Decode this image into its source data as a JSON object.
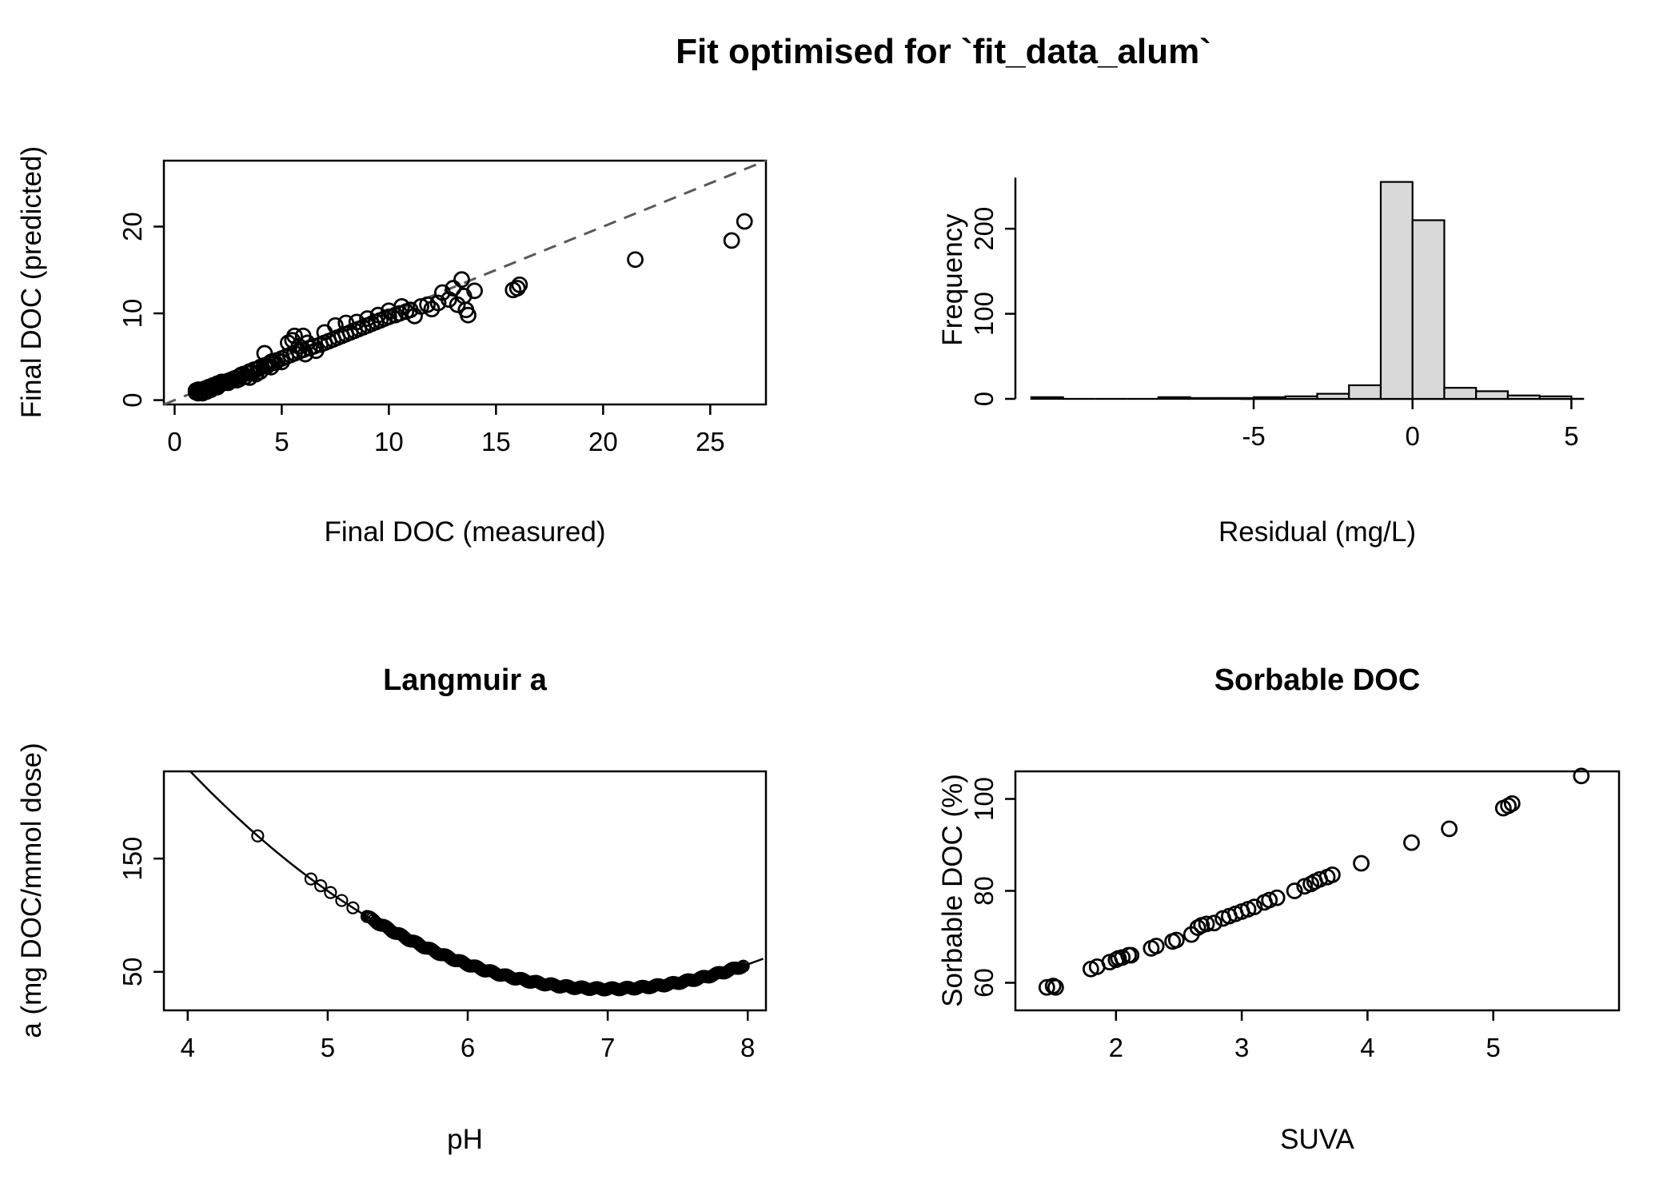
{
  "title": "Fit optimised for `fit_data_alum`",
  "chart_data": [
    {
      "type": "scatter",
      "title": "",
      "xlabel": "Final DOC (measured)",
      "ylabel": "Final DOC (predicted)",
      "xlim": [
        -0.5,
        27.6
      ],
      "ylim": [
        -0.5,
        27.6
      ],
      "xticks": [
        0,
        5,
        10,
        15,
        20,
        25
      ],
      "yticks": [
        0,
        10,
        20
      ],
      "grid": false,
      "reference_line": {
        "kind": "identity",
        "style": "dashed",
        "color": "#595959"
      },
      "points": [
        [
          1,
          0.9
        ],
        [
          1,
          1.1
        ],
        [
          1.1,
          0.8
        ],
        [
          1.1,
          1
        ],
        [
          1.1,
          1.2
        ],
        [
          1.2,
          0.9
        ],
        [
          1.2,
          1.1
        ],
        [
          1.3,
          1
        ],
        [
          1.3,
          1.2
        ],
        [
          1.3,
          0.8
        ],
        [
          1.4,
          1.1
        ],
        [
          1.4,
          1.3
        ],
        [
          1.5,
          1
        ],
        [
          1.5,
          1.2
        ],
        [
          1.5,
          1.4
        ],
        [
          1.6,
          1.3
        ],
        [
          1.6,
          1.5
        ],
        [
          1.7,
          1.4
        ],
        [
          1.7,
          1.2
        ],
        [
          1.8,
          1.5
        ],
        [
          1.8,
          1.7
        ],
        [
          1.9,
          1.6
        ],
        [
          2,
          1.7
        ],
        [
          2,
          1.5
        ],
        [
          2,
          1.9
        ],
        [
          2.1,
          1.8
        ],
        [
          2.2,
          1.9
        ],
        [
          2.2,
          2.1
        ],
        [
          2.3,
          2
        ],
        [
          2.4,
          2.1
        ],
        [
          2.5,
          2.2
        ],
        [
          2.5,
          2
        ],
        [
          2.6,
          2.3
        ],
        [
          2.7,
          2.4
        ],
        [
          2.8,
          2.5
        ],
        [
          2.9,
          2.3
        ],
        [
          3,
          2.7
        ],
        [
          3,
          2.4
        ],
        [
          3.1,
          2.9
        ],
        [
          3.2,
          3
        ],
        [
          3.3,
          2.7
        ],
        [
          3.4,
          3.1
        ],
        [
          3.5,
          3.3
        ],
        [
          3.5,
          2.6
        ],
        [
          3.6,
          3.2
        ],
        [
          3.7,
          3.5
        ],
        [
          3.8,
          3
        ],
        [
          3.9,
          3.6
        ],
        [
          4,
          3.8
        ],
        [
          4,
          3.3
        ],
        [
          4.2,
          5.4
        ],
        [
          4.2,
          4
        ],
        [
          4.3,
          3.9
        ],
        [
          4.4,
          4.2
        ],
        [
          4.5,
          4.4
        ],
        [
          4.5,
          3.8
        ],
        [
          4.6,
          4.5
        ],
        [
          4.7,
          4.3
        ],
        [
          4.8,
          4.6
        ],
        [
          5,
          4.8
        ],
        [
          5,
          4.4
        ],
        [
          5.2,
          5
        ],
        [
          5.3,
          6.6
        ],
        [
          5.4,
          5.2
        ],
        [
          5.5,
          6.9
        ],
        [
          5.6,
          5.4
        ],
        [
          5.6,
          7.4
        ],
        [
          5.8,
          5.6
        ],
        [
          5.8,
          6.2
        ],
        [
          6,
          5.8
        ],
        [
          6,
          7.4
        ],
        [
          6.1,
          5.3
        ],
        [
          6.2,
          6.6
        ],
        [
          6.3,
          6
        ],
        [
          6.5,
          6.2
        ],
        [
          6.6,
          5.7
        ],
        [
          6.8,
          6.4
        ],
        [
          7,
          6.6
        ],
        [
          7,
          7.8
        ],
        [
          7.2,
          6.8
        ],
        [
          7.4,
          7
        ],
        [
          7.5,
          8.6
        ],
        [
          7.6,
          7.2
        ],
        [
          7.8,
          7.4
        ],
        [
          8,
          7.6
        ],
        [
          8,
          8.9
        ],
        [
          8.2,
          7.8
        ],
        [
          8.4,
          8
        ],
        [
          8.5,
          9
        ],
        [
          8.6,
          8.2
        ],
        [
          8.8,
          8.4
        ],
        [
          9,
          8.6
        ],
        [
          9,
          9.4
        ],
        [
          9.2,
          8.8
        ],
        [
          9.4,
          9
        ],
        [
          9.5,
          9.8
        ],
        [
          9.6,
          9.2
        ],
        [
          9.8,
          9.4
        ],
        [
          10,
          9.6
        ],
        [
          10,
          10.3
        ],
        [
          10.3,
          9.8
        ],
        [
          10.5,
          10
        ],
        [
          10.6,
          10.8
        ],
        [
          10.8,
          10.2
        ],
        [
          11,
          10.4
        ],
        [
          11.2,
          9.7
        ],
        [
          11.5,
          10.8
        ],
        [
          11.8,
          11
        ],
        [
          12,
          10.5
        ],
        [
          12.3,
          11.2
        ],
        [
          12.5,
          12.4
        ],
        [
          12.8,
          11.6
        ],
        [
          13,
          12.9
        ],
        [
          13.2,
          11
        ],
        [
          13.4,
          13.9
        ],
        [
          13.5,
          12
        ],
        [
          13.6,
          10.4
        ],
        [
          13.7,
          9.8
        ],
        [
          14,
          12.6
        ],
        [
          15.8,
          12.7
        ],
        [
          16,
          12.9
        ],
        [
          16.1,
          13.3
        ],
        [
          21.5,
          16.2
        ],
        [
          26,
          18.4
        ],
        [
          26.6,
          20.6
        ]
      ]
    },
    {
      "type": "histogram",
      "title": "",
      "xlabel": "Residual (mg/L)",
      "ylabel": "Frequency",
      "xlim": [
        -12.5,
        6.5
      ],
      "ylim": [
        0,
        280
      ],
      "xticks": [
        -5,
        0,
        5
      ],
      "yticks": [
        0,
        100,
        200
      ],
      "bin_start": -12,
      "bin_width": 1,
      "counts": [
        2,
        0,
        0,
        0,
        2,
        1,
        1,
        2,
        3,
        6,
        16,
        255,
        210,
        13,
        9,
        4,
        3
      ],
      "bar_fill": "#d9d9d9",
      "bar_border": "#000000",
      "x_axis_span": [
        -5.4,
        5.4
      ],
      "y_axis_span": [
        0,
        260
      ]
    },
    {
      "type": "scatter+curve",
      "title": "Langmuir a",
      "xlabel": "pH",
      "ylabel": "a (mg DOC/mmol dose)",
      "xlim": [
        3.83,
        8.13
      ],
      "ylim": [
        16,
        227
      ],
      "xticks": [
        4,
        5,
        6,
        7,
        8
      ],
      "yticks": [
        50,
        150
      ],
      "curve": {
        "model": "a = a_min + k*(pH - pH_min)^2",
        "a_min": 35,
        "k": 21.6,
        "pH_min": 7
      },
      "sparse_points": [
        [
          4.5,
          170
        ],
        [
          4.88,
          132
        ],
        [
          4.95,
          126
        ],
        [
          5.02,
          120
        ],
        [
          5.1,
          113
        ],
        [
          5.18,
          106.5
        ]
      ],
      "dense_band": {
        "ph_start": 5.28,
        "ph_end": 7.97,
        "ph_step": 0.012
      }
    },
    {
      "type": "scatter",
      "title": "Sorbable DOC",
      "xlabel": "SUVA",
      "ylabel": "Sorbable DOC (%)",
      "xlim": [
        1.2,
        6.0
      ],
      "ylim": [
        54,
        106
      ],
      "xticks": [
        2,
        3,
        4,
        5
      ],
      "yticks": [
        60,
        80,
        100
      ],
      "points": [
        [
          1.45,
          59
        ],
        [
          1.5,
          59.3
        ],
        [
          1.52,
          59
        ],
        [
          1.8,
          63
        ],
        [
          1.85,
          63.5
        ],
        [
          1.95,
          64.5
        ],
        [
          2,
          65
        ],
        [
          2.02,
          65.3
        ],
        [
          2.05,
          65.5
        ],
        [
          2.1,
          66
        ],
        [
          2.12,
          66
        ],
        [
          2.28,
          67.5
        ],
        [
          2.32,
          68
        ],
        [
          2.45,
          69
        ],
        [
          2.48,
          69.3
        ],
        [
          2.6,
          70.5
        ],
        [
          2.65,
          72
        ],
        [
          2.68,
          72.5
        ],
        [
          2.72,
          72.8
        ],
        [
          2.78,
          73
        ],
        [
          2.85,
          74
        ],
        [
          2.9,
          74.5
        ],
        [
          2.95,
          75
        ],
        [
          3,
          75.5
        ],
        [
          3.05,
          76
        ],
        [
          3.1,
          76.5
        ],
        [
          3.18,
          77.5
        ],
        [
          3.22,
          78
        ],
        [
          3.28,
          78.5
        ],
        [
          3.42,
          80
        ],
        [
          3.5,
          81
        ],
        [
          3.55,
          81.5
        ],
        [
          3.58,
          82
        ],
        [
          3.62,
          82.5
        ],
        [
          3.68,
          83
        ],
        [
          3.72,
          83.5
        ],
        [
          3.95,
          86
        ],
        [
          4.35,
          90.5
        ],
        [
          4.65,
          93.5
        ],
        [
          5.08,
          98
        ],
        [
          5.12,
          98.5
        ],
        [
          5.15,
          99
        ],
        [
          5.7,
          105
        ]
      ]
    }
  ]
}
